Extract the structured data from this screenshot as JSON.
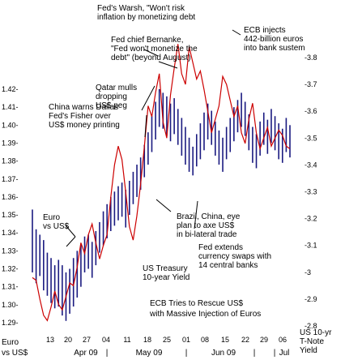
{
  "chart_data": {
    "type": "line",
    "title": "ECB Tries to Rescue US$ with Massive Injection of Euros",
    "title_lines": [
      "ECB Tries to Rescue US$",
      "with Massive Injection of Euros"
    ],
    "left_axis": {
      "label_lines": [
        "Euro",
        "vs US$"
      ],
      "ticks": [
        "1.29",
        "1.30",
        "1.31",
        "1.32",
        "1.33",
        "1.34",
        "1.35",
        "1.36",
        "1.37",
        "1.38",
        "1.39",
        "1.40",
        "1.41",
        "1.42"
      ],
      "ylim": [
        1.285,
        1.425
      ]
    },
    "right_axis": {
      "label_lines": [
        "US 10-yr",
        "T-Note",
        "Yield"
      ],
      "ticks": [
        "2.8",
        "2.9",
        "3",
        "3.1",
        "3.2",
        "3.3",
        "3.4",
        "3.5",
        "3.6",
        "3.7",
        "3.8"
      ],
      "ylim": [
        2.77,
        3.89
      ]
    },
    "x_axis": {
      "day_ticks": [
        "13",
        "20",
        "27",
        "04",
        "11",
        "18",
        "25",
        "01",
        "08",
        "15",
        "22",
        "29",
        "06"
      ],
      "month_labels": [
        "Apr 09",
        "May 09",
        "Jun 09",
        "Jul"
      ],
      "separator": "|"
    },
    "series": [
      {
        "name": "Euro vs US$",
        "kind": "ohlc",
        "color": "#1a1a80",
        "bars": [
          [
            1.353,
            1.318
          ],
          [
            1.342,
            1.312
          ],
          [
            1.339,
            1.316
          ],
          [
            1.336,
            1.308
          ],
          [
            1.329,
            1.305
          ],
          [
            1.326,
            1.301
          ],
          [
            1.322,
            1.298
          ],
          [
            1.325,
            1.299
          ],
          [
            1.322,
            1.294
          ],
          [
            1.318,
            1.291
          ],
          [
            1.32,
            1.295
          ],
          [
            1.326,
            1.299
          ],
          [
            1.33,
            1.304
          ],
          [
            1.334,
            1.31
          ],
          [
            1.338,
            1.318
          ],
          [
            1.339,
            1.32
          ],
          [
            1.335,
            1.315
          ],
          [
            1.341,
            1.322
          ],
          [
            1.346,
            1.329
          ],
          [
            1.352,
            1.333
          ],
          [
            1.356,
            1.337
          ],
          [
            1.36,
            1.341
          ],
          [
            1.363,
            1.344
          ],
          [
            1.366,
            1.347
          ],
          [
            1.368,
            1.349
          ],
          [
            1.364,
            1.343
          ],
          [
            1.369,
            1.35
          ],
          [
            1.374,
            1.356
          ],
          [
            1.378,
            1.36
          ],
          [
            1.382,
            1.364
          ],
          [
            1.389,
            1.371
          ],
          [
            1.396,
            1.378
          ],
          [
            1.405,
            1.385
          ],
          [
            1.413,
            1.392
          ],
          [
            1.42,
            1.399
          ],
          [
            1.418,
            1.398
          ],
          [
            1.416,
            1.394
          ],
          [
            1.412,
            1.391
          ],
          [
            1.415,
            1.395
          ],
          [
            1.409,
            1.389
          ],
          [
            1.404,
            1.383
          ],
          [
            1.399,
            1.378
          ],
          [
            1.393,
            1.374
          ],
          [
            1.388,
            1.372
          ],
          [
            1.395,
            1.377
          ],
          [
            1.401,
            1.381
          ],
          [
            1.407,
            1.386
          ],
          [
            1.412,
            1.392
          ],
          [
            1.408,
            1.389
          ],
          [
            1.402,
            1.383
          ],
          [
            1.397,
            1.378
          ],
          [
            1.393,
            1.374
          ],
          [
            1.399,
            1.381
          ],
          [
            1.404,
            1.385
          ],
          [
            1.41,
            1.391
          ],
          [
            1.414,
            1.396
          ],
          [
            1.418,
            1.399
          ],
          [
            1.413,
            1.394
          ],
          [
            1.406,
            1.386
          ],
          [
            1.399,
            1.379
          ],
          [
            1.395,
            1.376
          ],
          [
            1.402,
            1.383
          ],
          [
            1.407,
            1.389
          ],
          [
            1.403,
            1.384
          ],
          [
            1.409,
            1.39
          ],
          [
            1.405,
            1.386
          ],
          [
            1.401,
            1.381
          ],
          [
            1.398,
            1.379
          ],
          [
            1.404,
            1.385
          ],
          [
            1.4,
            1.382
          ]
        ]
      },
      {
        "name": "US Treasury 10-year Yield",
        "name_lines": [
          "US Treasury",
          "10-year Yield"
        ],
        "kind": "line",
        "color": "#cc0000",
        "values": [
          2.98,
          2.97,
          2.9,
          2.84,
          2.82,
          2.87,
          2.93,
          2.88,
          2.86,
          2.91,
          2.96,
          2.95,
          3.02,
          3.11,
          3.07,
          3.14,
          3.18,
          3.11,
          3.05,
          3.1,
          3.14,
          3.28,
          3.4,
          3.47,
          3.42,
          3.3,
          3.17,
          3.12,
          3.21,
          3.33,
          3.47,
          3.62,
          3.58,
          3.67,
          3.74,
          3.56,
          3.5,
          3.66,
          3.76,
          3.85,
          3.74,
          3.7,
          3.84,
          3.78,
          3.72,
          3.75,
          3.68,
          3.6,
          3.52,
          3.57,
          3.62,
          3.73,
          3.7,
          3.64,
          3.58,
          3.62,
          3.52,
          3.48,
          3.57,
          3.63,
          3.52,
          3.46,
          3.5,
          3.54,
          3.47,
          3.5,
          3.53,
          3.51,
          3.47,
          3.46
        ]
      }
    ],
    "annotations": [
      {
        "lines": [
          "Fed's Warsh, \"Won't risk",
          "inflation by monetizing debt"
        ]
      },
      {
        "lines": [
          "Fed chief Bernanke,",
          "\"Fed won't monetize the",
          "debt\" (beyond August)"
        ]
      },
      {
        "lines": [
          "ECB injects",
          "442-billion euros",
          "into bank sustem"
        ]
      },
      {
        "lines": [
          "Qatar mulls",
          "dropping",
          "US$ peg"
        ]
      },
      {
        "lines": [
          "China warns Dallas",
          "Fed's Fisher over",
          "US$ money printing"
        ]
      },
      {
        "lines": [
          "Fed extends",
          "currency swaps with",
          "14 central banks"
        ]
      },
      {
        "lines": [
          "Brazil, China, eye",
          "plan to axe US$",
          "in bi-lateral trade"
        ]
      },
      {
        "lines": [
          "Euro",
          "vs US$"
        ]
      }
    ],
    "grid": false,
    "legend": "none"
  }
}
